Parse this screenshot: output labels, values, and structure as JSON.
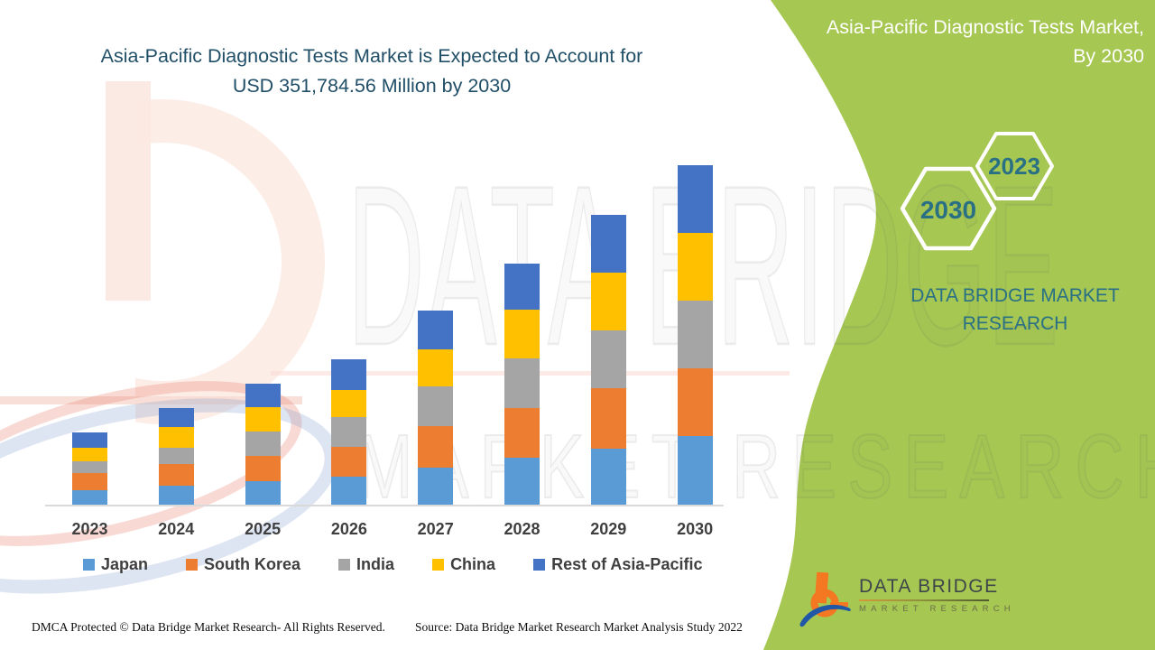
{
  "header": {
    "title_line1": "Asia-Pacific Diagnostic Tests Market is Expected to Account for",
    "title_line2": "USD 351,784.56 Million by 2030",
    "ribbon_line1": "Asia-Pacific Diagnostic Tests Market,",
    "ribbon_line2": "By 2030"
  },
  "side_panel": {
    "hexagon_large_label": "2030",
    "hexagon_small_label": "2023",
    "brand_line1": "DATA BRIDGE MARKET",
    "brand_line2": "RESEARCH"
  },
  "watermark": {
    "line1": "DATA BRIDGE",
    "line2": "MARKET RESEARCH"
  },
  "logo": {
    "name_line": "DATA BRIDGE",
    "sub_line": "MARKET RESEARCH"
  },
  "footer": {
    "left": "DMCA Protected © Data Bridge Market Research- All Rights Reserved.",
    "source": "Source: Data Bridge Market Research Market Analysis Study 2022"
  },
  "colors": {
    "green_band": "#A6C752",
    "title_text": "#214F68",
    "teal_text": "#2A7085",
    "axis_line": "#D9D9D9",
    "label_text": "#3F3F3F",
    "japan": "#5B9BD5",
    "south_korea": "#ED7D31",
    "india": "#A5A5A5",
    "china": "#FFC000",
    "rest_of_asia_pacific": "#4472C4"
  },
  "chart_data": {
    "type": "bar",
    "stacked": true,
    "title": "Asia-Pacific Diagnostic Tests Market",
    "unit": "USD Million",
    "total_2030": 351784.56,
    "categories": [
      "2023",
      "2024",
      "2025",
      "2026",
      "2027",
      "2028",
      "2029",
      "2030"
    ],
    "series": [
      {
        "name": "Japan",
        "color": "#5B9BD5",
        "values": [
          15900,
          20500,
          25200,
          29900,
          39200,
          49500,
          58800,
          71900
        ]
      },
      {
        "name": "South Korea",
        "color": "#ED7D31",
        "values": [
          17700,
          22000,
          26100,
          30800,
          42900,
          51300,
          62500,
          70000
        ]
      },
      {
        "name": "India",
        "color": "#A5A5A5",
        "values": [
          12100,
          17000,
          25200,
          30800,
          41100,
          51300,
          59700,
          70000
        ]
      },
      {
        "name": "China",
        "color": "#FFC000",
        "values": [
          14000,
          21500,
          25200,
          28000,
          38300,
          50400,
          59700,
          70000
        ]
      },
      {
        "name": "Rest of Asia-Pacific",
        "color": "#4472C4",
        "values": [
          15900,
          19500,
          24300,
          31700,
          40100,
          47600,
          59700,
          70000
        ]
      }
    ],
    "legend_position": "bottom",
    "grid": false,
    "y_axis_visible": false
  }
}
